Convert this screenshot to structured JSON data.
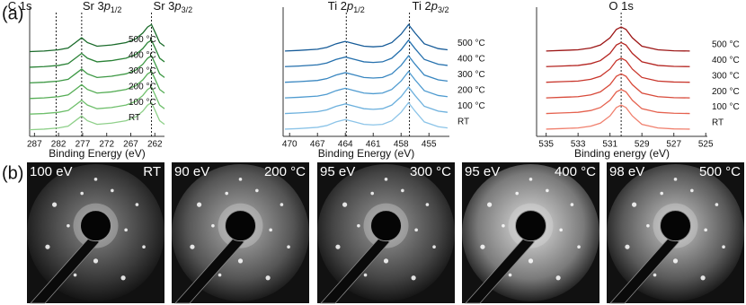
{
  "panel_labels": [
    "(a)",
    "(b)"
  ],
  "chart_data": [
    {
      "type": "line",
      "xlabel": "Binding Energy (eV)",
      "xlim": [
        288,
        260
      ],
      "xticks": [
        287,
        282,
        277,
        272,
        267,
        262
      ],
      "ylim": [
        0,
        10
      ],
      "annotations": [
        {
          "x": 282.5,
          "label": "C 1s"
        },
        {
          "x": 277.2,
          "label": "Sr 3",
          "italic": "p",
          "subscript": "1/2"
        },
        {
          "x": 262.7,
          "label": "Sr 3",
          "italic": "p",
          "subscript": "3/2"
        }
      ],
      "x": [
        288,
        285,
        282,
        280,
        278.5,
        277.2,
        276,
        274,
        271,
        268,
        266,
        264.5,
        263.5,
        262.7,
        262,
        261,
        260
      ],
      "series": [
        {
          "name": "RT",
          "color": "#8fd08a",
          "values": [
            0.55,
            0.6,
            0.7,
            0.85,
            1.3,
            1.7,
            1.3,
            1.0,
            1.1,
            1.3,
            1.6,
            2.1,
            2.6,
            2.8,
            2.2,
            1.3,
            1.0
          ]
        },
        {
          "name": "100 °C",
          "color": "#6fbf6c",
          "values": [
            1.85,
            1.9,
            2.0,
            2.15,
            2.6,
            3.0,
            2.6,
            2.3,
            2.4,
            2.6,
            2.9,
            3.4,
            3.9,
            4.1,
            3.5,
            2.6,
            2.3
          ]
        },
        {
          "name": "200 °C",
          "color": "#55ad55",
          "values": [
            3.15,
            3.2,
            3.3,
            3.45,
            3.9,
            4.3,
            3.9,
            3.6,
            3.7,
            3.9,
            4.2,
            4.7,
            5.2,
            5.4,
            4.8,
            3.9,
            3.6
          ]
        },
        {
          "name": "300 °C",
          "color": "#3d9844",
          "values": [
            4.45,
            4.5,
            4.6,
            4.75,
            5.2,
            5.6,
            5.2,
            4.9,
            5.0,
            5.2,
            5.5,
            6.0,
            6.5,
            6.7,
            6.1,
            5.2,
            4.9
          ]
        },
        {
          "name": "400 °C",
          "color": "#2a8236",
          "values": [
            5.75,
            5.8,
            5.9,
            6.05,
            6.5,
            6.9,
            6.5,
            6.2,
            6.3,
            6.5,
            6.8,
            7.3,
            7.8,
            8.0,
            7.4,
            6.5,
            6.2
          ]
        },
        {
          "name": "500 °C",
          "color": "#1b6b2b",
          "values": [
            7.05,
            7.1,
            7.2,
            7.35,
            7.8,
            8.2,
            7.8,
            7.5,
            7.6,
            7.8,
            8.1,
            8.6,
            9.1,
            9.3,
            8.7,
            7.8,
            7.5
          ]
        }
      ]
    },
    {
      "type": "line",
      "xlabel": "Binding Energy (eV)",
      "xlim": [
        470.7,
        452.8
      ],
      "xticks": [
        470,
        467,
        464,
        461,
        458,
        455
      ],
      "ylim": [
        0,
        10
      ],
      "annotations": [
        {
          "x": 463.9,
          "label": "Ti 2",
          "italic": "p",
          "subscript": "1/2"
        },
        {
          "x": 457.1,
          "label": "Ti 2",
          "italic": "p",
          "subscript": "3/2"
        }
      ],
      "x": [
        470.5,
        469,
        467,
        466,
        465,
        464,
        463,
        462,
        461,
        460,
        459,
        458,
        457.2,
        456.5,
        455.5,
        454,
        453
      ],
      "series": [
        {
          "name": "RT",
          "color": "#8cc4e8",
          "values": [
            0.6,
            0.65,
            0.75,
            0.9,
            1.2,
            1.4,
            1.2,
            1.0,
            0.95,
            1.0,
            1.3,
            2.0,
            2.8,
            2.1,
            1.2,
            0.8,
            0.7
          ]
        },
        {
          "name": "100 °C",
          "color": "#6cb0dd",
          "values": [
            1.9,
            1.95,
            2.05,
            2.2,
            2.5,
            2.7,
            2.5,
            2.3,
            2.25,
            2.3,
            2.6,
            3.3,
            4.1,
            3.4,
            2.5,
            2.1,
            2.0
          ]
        },
        {
          "name": "200 °C",
          "color": "#4f9bd0",
          "values": [
            3.2,
            3.25,
            3.35,
            3.5,
            3.8,
            4.0,
            3.8,
            3.6,
            3.55,
            3.6,
            3.9,
            4.6,
            5.4,
            4.7,
            3.8,
            3.4,
            3.3
          ]
        },
        {
          "name": "300 °C",
          "color": "#3886c0",
          "values": [
            4.5,
            4.55,
            4.65,
            4.8,
            5.1,
            5.3,
            5.1,
            4.9,
            4.85,
            4.9,
            5.2,
            5.9,
            6.7,
            6.0,
            5.1,
            4.7,
            4.6
          ]
        },
        {
          "name": "400 °C",
          "color": "#2570ad",
          "values": [
            5.8,
            5.85,
            5.95,
            6.1,
            6.4,
            6.6,
            6.4,
            6.2,
            6.15,
            6.2,
            6.5,
            7.2,
            8.0,
            7.3,
            6.4,
            6.0,
            5.9
          ]
        },
        {
          "name": "500 °C",
          "color": "#165b98",
          "values": [
            7.1,
            7.15,
            7.25,
            7.4,
            7.7,
            7.9,
            7.7,
            7.5,
            7.45,
            7.5,
            7.8,
            8.5,
            9.3,
            8.6,
            7.7,
            7.3,
            7.2
          ]
        }
      ]
    },
    {
      "type": "line",
      "xlabel": "Binding energy (eV)",
      "xlim": [
        535.6,
        524.9
      ],
      "xticks": [
        535,
        533,
        531,
        529,
        527,
        525
      ],
      "ylim": [
        0,
        10
      ],
      "annotations": [
        {
          "x": 530.3,
          "label": "O 1s"
        }
      ],
      "x": [
        535,
        534,
        533,
        532.2,
        531.6,
        531,
        530.6,
        530.3,
        530,
        529.6,
        529,
        528,
        527,
        526
      ],
      "series": [
        {
          "name": "RT",
          "color": "#f0806e",
          "values": [
            0.6,
            0.65,
            0.7,
            0.85,
            1.1,
            1.7,
            2.4,
            2.6,
            2.4,
            1.7,
            1.0,
            0.7,
            0.62,
            0.6
          ]
        },
        {
          "name": "100 °C",
          "color": "#e5624f",
          "values": [
            1.9,
            1.95,
            2.0,
            2.15,
            2.4,
            3.0,
            3.7,
            3.9,
            3.7,
            3.0,
            2.3,
            2.0,
            1.92,
            1.9
          ]
        },
        {
          "name": "200 °C",
          "color": "#d84a3a",
          "values": [
            3.2,
            3.25,
            3.3,
            3.45,
            3.7,
            4.3,
            5.0,
            5.2,
            5.0,
            4.3,
            3.6,
            3.3,
            3.22,
            3.2
          ]
        },
        {
          "name": "300 °C",
          "color": "#c8352b",
          "values": [
            4.5,
            4.55,
            4.6,
            4.75,
            5.0,
            5.6,
            6.3,
            6.5,
            6.3,
            5.6,
            4.9,
            4.6,
            4.52,
            4.5
          ]
        },
        {
          "name": "400 °C",
          "color": "#b42420",
          "values": [
            5.8,
            5.85,
            5.9,
            6.05,
            6.3,
            6.9,
            7.6,
            7.8,
            7.6,
            6.9,
            6.2,
            5.9,
            5.82,
            5.8
          ]
        },
        {
          "name": "500 °C",
          "color": "#9c1616",
          "values": [
            7.1,
            7.15,
            7.2,
            7.35,
            7.6,
            8.2,
            8.9,
            9.1,
            8.9,
            8.2,
            7.5,
            7.2,
            7.12,
            7.1
          ]
        }
      ]
    }
  ],
  "leed_images": [
    {
      "energy": "100 eV",
      "temperature": "RT"
    },
    {
      "energy": "90 eV",
      "temperature": "200 °C"
    },
    {
      "energy": "95 eV",
      "temperature": "300 °C"
    },
    {
      "energy": "95 eV",
      "temperature": "400 °C"
    },
    {
      "energy": "98 eV",
      "temperature": "500 °C"
    }
  ]
}
